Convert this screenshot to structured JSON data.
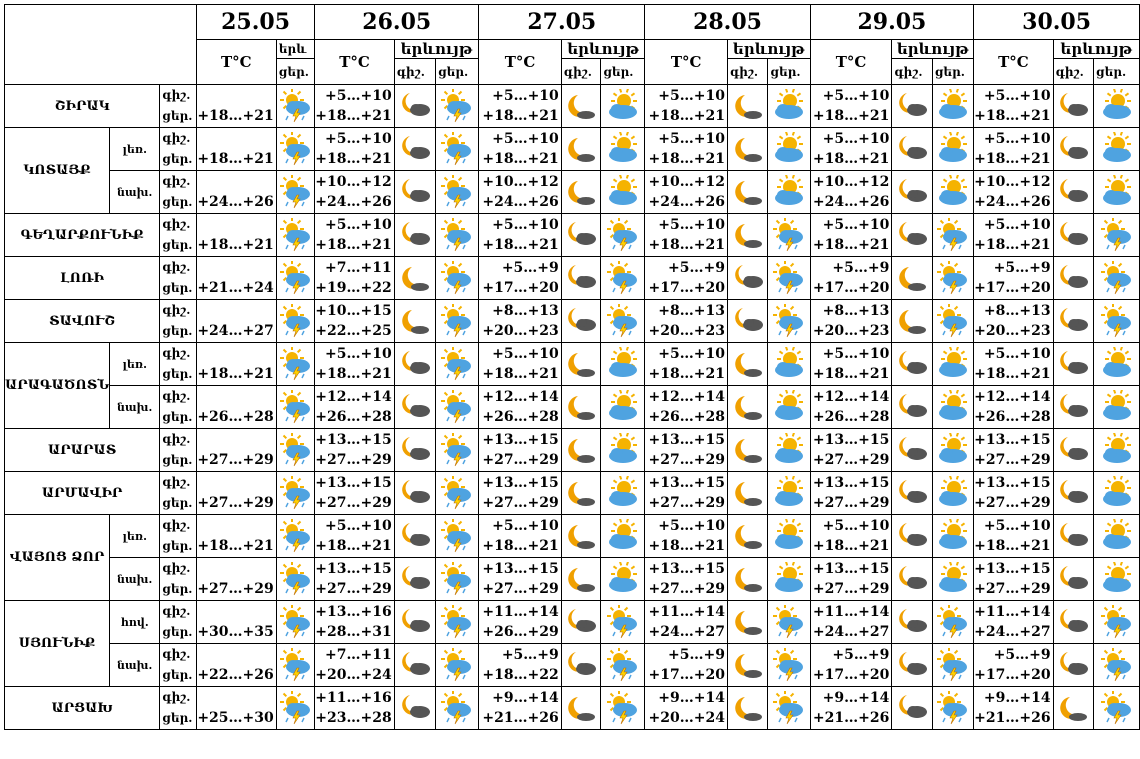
{
  "header": {
    "dates": [
      "25.05",
      "26.05",
      "27.05",
      "28.05",
      "29.05",
      "30.05"
    ],
    "temp_label": "T°C",
    "phen_short": "երև",
    "phen_label": "երևույթ",
    "night": "գիշ.",
    "day": "ցեր.",
    "day_short": "ցեր."
  },
  "regions": [
    {
      "name": "ՇԻՐԱԿ",
      "rows": [
        {
          "sub": "",
          "d25": "+18…+21",
          "n26": "+5…+10",
          "d26": "+18…+21",
          "n27": "+5…+10",
          "d27": "+18…+21",
          "n28": "+5…+10",
          "d28": "+18…+21",
          "n29": "+5…+10",
          "d29": "+18…+21",
          "n30": "+5…+10",
          "d30": "+18…+21"
        }
      ]
    },
    {
      "name": "ԿՈՏԱՅՔ",
      "rows": [
        {
          "sub": "լեռ.",
          "d25": "+18…+21",
          "n26": "+5…+10",
          "d26": "+18…+21",
          "n27": "+5…+10",
          "d27": "+18…+21",
          "n28": "+5…+10",
          "d28": "+18…+21",
          "n29": "+5…+10",
          "d29": "+18…+21",
          "n30": "+5…+10",
          "d30": "+18…+21"
        },
        {
          "sub": "նախ.",
          "d25": "+24…+26",
          "n26": "+10…+12",
          "d26": "+24…+26",
          "n27": "+10…+12",
          "d27": "+24…+26",
          "n28": "+10…+12",
          "d28": "+24…+26",
          "n29": "+10…+12",
          "d29": "+24…+26",
          "n30": "+10…+12",
          "d30": "+24…+26"
        }
      ]
    },
    {
      "name": "ԳԵՂԱՐՔՈՒՆԻՔ",
      "rows": [
        {
          "sub": "",
          "d25": "+18…+21",
          "n26": "+5…+10",
          "d26": "+18…+21",
          "n27": "+5…+10",
          "d27": "+18…+21",
          "n28": "+5…+10",
          "d28": "+18…+21",
          "n29": "+5…+10",
          "d29": "+18…+21",
          "n30": "+5…+10",
          "d30": "+18…+21"
        }
      ]
    },
    {
      "name": "ԼՈՌԻ",
      "rows": [
        {
          "sub": "",
          "d25": "+21…+24",
          "n26": "+7…+11",
          "d26": "+19…+22",
          "n27": "+5…+9",
          "d27": "+17…+20",
          "n28": "+5…+9",
          "d28": "+17…+20",
          "n29": "+5…+9",
          "d29": "+17…+20",
          "n30": "+5…+9",
          "d30": "+17…+20"
        }
      ]
    },
    {
      "name": "ՏԱՎՈՒՇ",
      "rows": [
        {
          "sub": "",
          "d25": "+24…+27",
          "n26": "+10…+15",
          "d26": "+22…+25",
          "n27": "+8…+13",
          "d27": "+20…+23",
          "n28": "+8…+13",
          "d28": "+20…+23",
          "n29": "+8…+13",
          "d29": "+20…+23",
          "n30": "+8…+13",
          "d30": "+20…+23"
        }
      ]
    },
    {
      "name": "ԱՐԱԳԱԾՈՏՆ",
      "rows": [
        {
          "sub": "լեռ.",
          "d25": "+18…+21",
          "n26": "+5…+10",
          "d26": "+18…+21",
          "n27": "+5…+10",
          "d27": "+18…+21",
          "n28": "+5…+10",
          "d28": "+18…+21",
          "n29": "+5…+10",
          "d29": "+18…+21",
          "n30": "+5…+10",
          "d30": "+18…+21"
        },
        {
          "sub": "նախ.",
          "d25": "+26…+28",
          "n26": "+12…+14",
          "d26": "+26…+28",
          "n27": "+12…+14",
          "d27": "+26…+28",
          "n28": "+12…+14",
          "d28": "+26…+28",
          "n29": "+12…+14",
          "d29": "+26…+28",
          "n30": "+12…+14",
          "d30": "+26…+28"
        }
      ]
    },
    {
      "name": "ԱՐԱՐԱՏ",
      "rows": [
        {
          "sub": "",
          "d25": "+27…+29",
          "n26": "+13…+15",
          "d26": "+27…+29",
          "n27": "+13…+15",
          "d27": "+27…+29",
          "n28": "+13…+15",
          "d28": "+27…+29",
          "n29": "+13…+15",
          "d29": "+27…+29",
          "n30": "+13…+15",
          "d30": "+27…+29"
        }
      ]
    },
    {
      "name": "ԱՐՄԱՎԻՐ",
      "rows": [
        {
          "sub": "",
          "d25": "+27…+29",
          "n26": "+13…+15",
          "d26": "+27…+29",
          "n27": "+13…+15",
          "d27": "+27…+29",
          "n28": "+13…+15",
          "d28": "+27…+29",
          "n29": "+13…+15",
          "d29": "+27…+29",
          "n30": "+13…+15",
          "d30": "+27…+29"
        }
      ]
    },
    {
      "name": "ՎԱՅՈՑ ՁՈՐ",
      "rows": [
        {
          "sub": "լեռ.",
          "d25": "+18…+21",
          "n26": "+5…+10",
          "d26": "+18…+21",
          "n27": "+5…+10",
          "d27": "+18…+21",
          "n28": "+5…+10",
          "d28": "+18…+21",
          "n29": "+5…+10",
          "d29": "+18…+21",
          "n30": "+5…+10",
          "d30": "+18…+21"
        },
        {
          "sub": "նախ.",
          "d25": "+27…+29",
          "n26": "+13…+15",
          "d26": "+27…+29",
          "n27": "+13…+15",
          "d27": "+27…+29",
          "n28": "+13…+15",
          "d28": "+27…+29",
          "n29": "+13…+15",
          "d29": "+27…+29",
          "n30": "+13…+15",
          "d30": "+27…+29"
        }
      ]
    },
    {
      "name": "ՍՅՈՒՆԻՔ",
      "rows": [
        {
          "sub": "հով.",
          "d25": "+30…+35",
          "n26": "+13…+16",
          "d26": "+28…+31",
          "n27": "+11…+14",
          "d27": "+26…+29",
          "n28": "+11…+14",
          "d28": "+24…+27",
          "n29": "+11…+14",
          "d29": "+24…+27",
          "n30": "+11…+14",
          "d30": "+24…+27"
        },
        {
          "sub": "նախ.",
          "d25": "+22…+26",
          "n26": "+7…+11",
          "d26": "+20…+24",
          "n27": "+5…+9",
          "d27": "+18…+22",
          "n28": "+5…+9",
          "d28": "+17…+20",
          "n29": "+5…+9",
          "d29": "+17…+20",
          "n30": "+5…+9",
          "d30": "+17…+20"
        }
      ]
    },
    {
      "name": "ԱՐՑԱԽ",
      "rows": [
        {
          "sub": "",
          "d25": "+25…+30",
          "n26": "+11…+16",
          "d26": "+23…+28",
          "n27": "+9…+14",
          "d27": "+21…+26",
          "n28": "+9…+14",
          "d28": "+20…+24",
          "n29": "+9…+14",
          "d29": "+21…+26",
          "n30": "+9…+14",
          "d30": "+21…+26"
        }
      ]
    }
  ],
  "icons": {
    "storm": "sun-cloud-rain-lightning-icon",
    "moon_cloud": "moon-cloud-icon",
    "sun_cloud": "sun-cloud-icon",
    "moon": "moon-icon"
  },
  "colors": {
    "sun": "#f5b301",
    "cloud": "#4fa3e0",
    "moon": "#f0a000",
    "dark_cloud": "#555555",
    "lightning": "#ffd400"
  }
}
